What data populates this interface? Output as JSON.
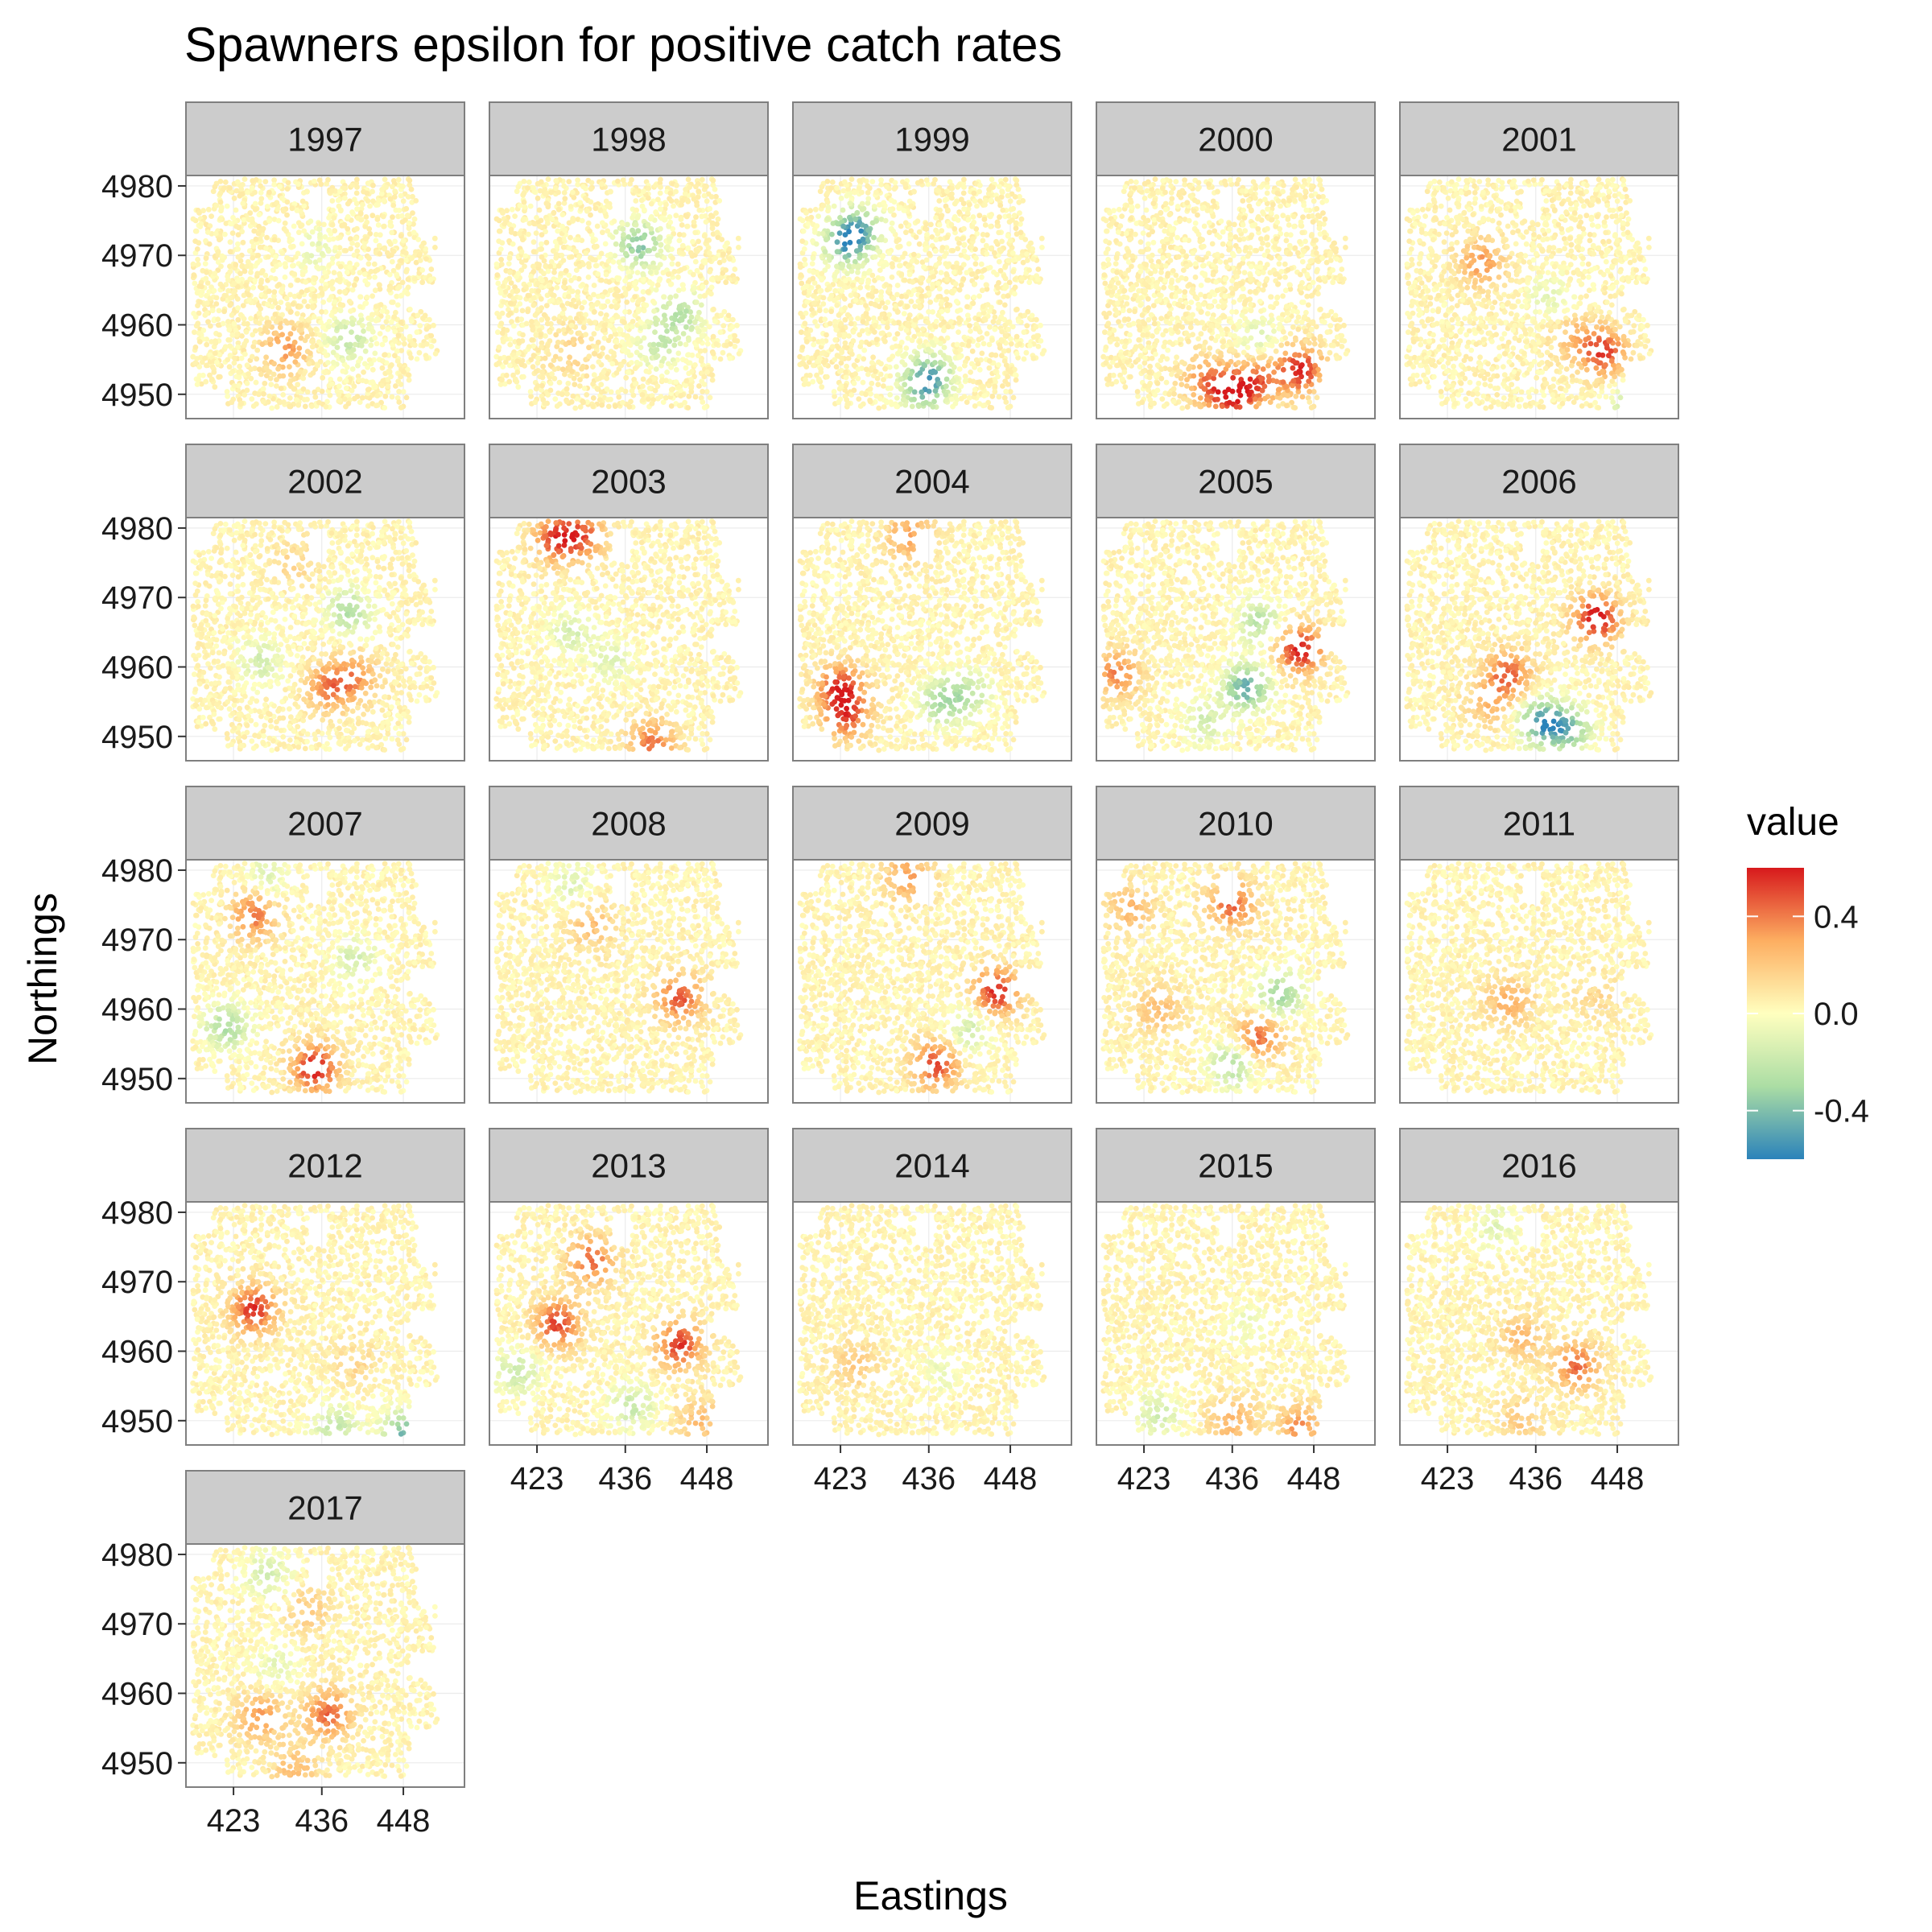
{
  "chart_data": {
    "type": "scatter",
    "title": "Spawners epsilon for positive catch rates",
    "xlabel": "Eastings",
    "ylabel": "Northings",
    "facet_variable": "year",
    "facets": [
      "1997",
      "1998",
      "1999",
      "2000",
      "2001",
      "2002",
      "2003",
      "2004",
      "2005",
      "2006",
      "2007",
      "2008",
      "2009",
      "2010",
      "2011",
      "2012",
      "2013",
      "2014",
      "2015",
      "2016",
      "2017"
    ],
    "ncol": 5,
    "xlim": [
      416,
      457
    ],
    "ylim": [
      4946.5,
      4981.5
    ],
    "x_ticks": [
      423,
      436,
      448
    ],
    "x_tick_labels": [
      "423",
      "436",
      "448"
    ],
    "y_ticks": [
      4950,
      4960,
      4970,
      4980
    ],
    "y_tick_labels": [
      "4950",
      "4960",
      "4970",
      "4980"
    ],
    "grid": true,
    "legend": {
      "title": "value",
      "position": "right",
      "type": "colorbar",
      "range": [
        -0.6,
        0.6
      ],
      "ticks": [
        0.4,
        0.0,
        -0.4
      ],
      "tick_labels": [
        "0.4",
        "0.0",
        "-0.4"
      ],
      "colors": [
        "#d7191c",
        "#fdae61",
        "#ffffbf",
        "#abdda4",
        "#2b83ba"
      ]
    },
    "hotspots": {
      "1997": [
        [
          430.5,
          4956.5,
          0.3
        ],
        [
          440,
          4958,
          -0.25
        ],
        [
          435,
          4971,
          -0.12
        ]
      ],
      "1998": [
        [
          438,
          4971.5,
          -0.42
        ],
        [
          444,
          4961.5,
          -0.3
        ],
        [
          441,
          4957,
          -0.22
        ],
        [
          428,
          4956,
          0.12
        ]
      ],
      "1999": [
        [
          424,
          4972,
          -0.55
        ],
        [
          426,
          4974,
          -0.3
        ],
        [
          436,
          4952.5,
          -0.5
        ],
        [
          435,
          4950,
          -0.2
        ]
      ],
      "2000": [
        [
          436,
          4950,
          0.6
        ],
        [
          446,
          4953.5,
          0.55
        ],
        [
          440,
          4952,
          0.35
        ],
        [
          432,
          4952,
          0.3
        ],
        [
          440,
          4958,
          -0.15
        ]
      ],
      "2001": [
        [
          446,
          4956,
          0.48
        ],
        [
          428,
          4969,
          0.3
        ],
        [
          442,
          4958,
          0.2
        ],
        [
          451,
          4948.5,
          -0.35
        ],
        [
          438,
          4964,
          -0.12
        ]
      ],
      "2002": [
        [
          437,
          4957,
          0.35
        ],
        [
          441,
          4958.5,
          0.3
        ],
        [
          440,
          4968,
          -0.3
        ],
        [
          427,
          4961,
          -0.2
        ],
        [
          432,
          4975,
          0.1
        ]
      ],
      "2003": [
        [
          426,
          4978.5,
          0.5
        ],
        [
          430,
          4979,
          0.35
        ],
        [
          440,
          4949,
          0.38
        ],
        [
          428,
          4965,
          -0.18
        ],
        [
          434,
          4961,
          -0.15
        ]
      ],
      "2004": [
        [
          423,
          4957,
          0.5
        ],
        [
          424,
          4953,
          0.42
        ],
        [
          433,
          4979,
          0.28
        ],
        [
          438,
          4955,
          -0.32
        ],
        [
          442,
          4956,
          -0.22
        ]
      ],
      "2005": [
        [
          446,
          4962.5,
          0.58
        ],
        [
          419,
          4959,
          0.35
        ],
        [
          438,
          4957,
          -0.5
        ],
        [
          440,
          4966.5,
          -0.28
        ],
        [
          432,
          4952,
          -0.2
        ]
      ],
      "2006": [
        [
          445,
          4967,
          0.62
        ],
        [
          432,
          4959,
          0.42
        ],
        [
          437,
          4952,
          -0.55
        ],
        [
          441,
          4951,
          -0.38
        ],
        [
          429,
          4955,
          0.2
        ]
      ],
      "2007": [
        [
          435,
          4951.5,
          0.58
        ],
        [
          422,
          4957.5,
          -0.32
        ],
        [
          426,
          4973.5,
          0.38
        ],
        [
          441,
          4967,
          -0.2
        ],
        [
          428,
          4979,
          -0.15
        ]
      ],
      "2008": [
        [
          444,
          4961.5,
          0.45
        ],
        [
          431,
          4972,
          0.2
        ],
        [
          428,
          4978,
          -0.15
        ]
      ],
      "2009": [
        [
          446,
          4962.5,
          0.55
        ],
        [
          437,
          4952,
          0.48
        ],
        [
          433,
          4979,
          0.3
        ],
        [
          442,
          4957,
          -0.2
        ]
      ],
      "2010": [
        [
          436,
          4975,
          0.42
        ],
        [
          440,
          4956,
          0.4
        ],
        [
          443,
          4962,
          -0.35
        ],
        [
          436,
          4952,
          -0.3
        ],
        [
          421,
          4974.5,
          0.22
        ],
        [
          425,
          4960,
          0.2
        ]
      ],
      "2011": [
        [
          432,
          4961,
          0.25
        ],
        [
          445,
          4962,
          0.1
        ]
      ],
      "2012": [
        [
          426,
          4966,
          0.52
        ],
        [
          448,
          4948,
          -0.45
        ],
        [
          438,
          4949,
          -0.25
        ],
        [
          441,
          4958,
          0.1
        ]
      ],
      "2013": [
        [
          444,
          4961,
          0.5
        ],
        [
          426,
          4964,
          0.48
        ],
        [
          431,
          4973,
          0.4
        ],
        [
          437,
          4952,
          -0.22
        ],
        [
          420,
          4957,
          -0.22
        ],
        [
          447,
          4950,
          0.2
        ]
      ],
      "2014": [
        [
          425,
          4958,
          0.15
        ],
        [
          438,
          4957,
          -0.1
        ]
      ],
      "2015": [
        [
          446,
          4949,
          0.32
        ],
        [
          436,
          4950,
          0.25
        ],
        [
          425,
          4951,
          -0.2
        ],
        [
          438,
          4964,
          -0.1
        ]
      ],
      "2016": [
        [
          442,
          4958,
          0.4
        ],
        [
          434,
          4962,
          0.2
        ],
        [
          434,
          4950,
          0.15
        ],
        [
          430,
          4978,
          -0.15
        ]
      ],
      "2017": [
        [
          437,
          4957,
          0.42
        ],
        [
          427,
          4956.5,
          0.3
        ],
        [
          432,
          4949,
          0.2
        ],
        [
          428,
          4977,
          -0.2
        ],
        [
          434,
          4972,
          0.15
        ],
        [
          429,
          4964,
          -0.12
        ]
      ]
    }
  }
}
